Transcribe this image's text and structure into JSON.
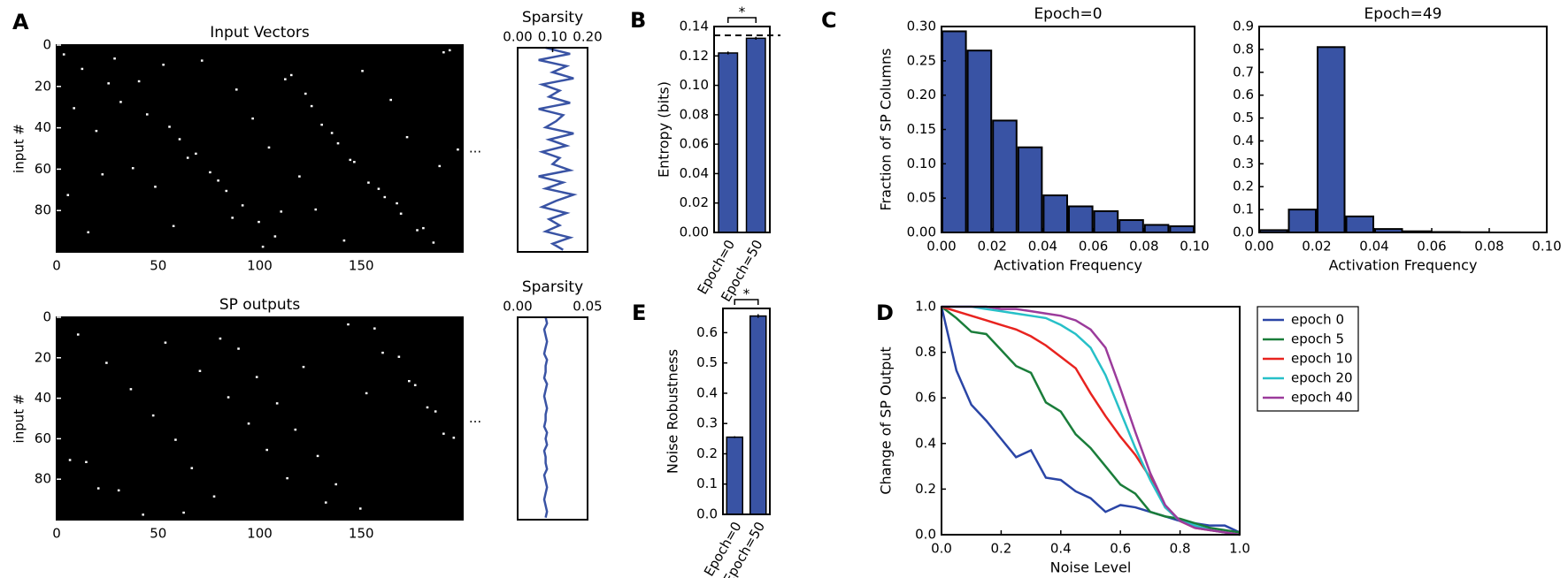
{
  "chart_data": [
    {
      "type": "raster",
      "panel": "A",
      "title": "Input Vectors",
      "y_label": "input #",
      "annotation": "...",
      "xlim": [
        0,
        200
      ],
      "xticks": [
        0,
        50,
        100,
        150
      ],
      "ylim": [
        0,
        100
      ],
      "yticks": [
        0,
        20,
        40,
        60,
        80
      ],
      "y_inverted": true,
      "x": [
        3,
        12,
        25,
        31,
        44,
        52,
        60,
        68,
        75,
        83,
        91,
        99,
        107,
        115,
        122,
        130,
        138,
        146,
        153,
        161,
        169,
        177,
        185,
        193,
        8,
        19,
        37,
        48,
        57,
        71,
        88,
        96,
        104,
        119,
        127,
        141,
        150,
        164,
        172,
        188,
        5,
        15,
        28,
        40,
        55,
        64,
        79,
        86,
        101,
        112,
        125,
        135,
        144,
        158,
        167,
        180,
        190,
        197,
        22,
        110
      ],
      "y": [
        4,
        11,
        18,
        27,
        33,
        9,
        45,
        52,
        61,
        70,
        77,
        85,
        92,
        14,
        23,
        38,
        47,
        56,
        66,
        73,
        81,
        89,
        95,
        2,
        30,
        41,
        59,
        68,
        87,
        7,
        21,
        35,
        49,
        63,
        79,
        94,
        12,
        26,
        44,
        58,
        72,
        90,
        6,
        17,
        39,
        54,
        65,
        83,
        97,
        16,
        29,
        42,
        55,
        69,
        76,
        88,
        3,
        50,
        62,
        80
      ]
    },
    {
      "type": "sparsity",
      "title": "Sparsity",
      "color": "#3953a4",
      "xlim": [
        0,
        0.2
      ],
      "xticks": [
        {
          "value": 0,
          "label": "0.00"
        },
        {
          "value": 0.1,
          "label": "0.10"
        },
        {
          "value": 0.2,
          "label": "0.20"
        }
      ],
      "ylim": [
        0,
        100
      ],
      "y_inverted": true,
      "y": [
        0,
        3,
        6,
        9,
        12,
        15,
        18,
        21,
        24,
        27,
        30,
        33,
        36,
        39,
        42,
        45,
        48,
        51,
        54,
        57,
        60,
        63,
        66,
        69,
        72,
        75,
        78,
        81,
        84,
        87,
        90,
        93,
        96,
        99
      ],
      "values": [
        0.08,
        0.15,
        0.06,
        0.14,
        0.1,
        0.16,
        0.07,
        0.12,
        0.09,
        0.15,
        0.06,
        0.13,
        0.11,
        0.08,
        0.16,
        0.09,
        0.14,
        0.07,
        0.12,
        0.1,
        0.15,
        0.06,
        0.13,
        0.08,
        0.16,
        0.11,
        0.07,
        0.14,
        0.09,
        0.12,
        0.08,
        0.15,
        0.1,
        0.13
      ]
    },
    {
      "type": "raster",
      "title": "SP outputs",
      "y_label": "input #",
      "annotation": "...",
      "xlim": [
        0,
        200
      ],
      "xticks": [
        0,
        50,
        100,
        150
      ],
      "ylim": [
        0,
        100
      ],
      "yticks": [
        0,
        20,
        40,
        60,
        80
      ],
      "y_inverted": true,
      "x": [
        10,
        24,
        36,
        47,
        58,
        66,
        77,
        89,
        98,
        108,
        117,
        128,
        137,
        149,
        156,
        168,
        176,
        186,
        195,
        14,
        30,
        42,
        53,
        70,
        84,
        94,
        103,
        113,
        132,
        143,
        160,
        173,
        182,
        190,
        6,
        20,
        62,
        80,
        121,
        152
      ],
      "y": [
        8,
        22,
        35,
        48,
        60,
        74,
        88,
        15,
        29,
        42,
        55,
        68,
        82,
        94,
        5,
        19,
        33,
        46,
        59,
        71,
        85,
        97,
        12,
        26,
        39,
        52,
        65,
        79,
        91,
        3,
        17,
        31,
        44,
        57,
        70,
        84,
        96,
        10,
        24,
        37
      ]
    },
    {
      "type": "sparsity",
      "title": "Sparsity",
      "color": "#3953a4",
      "xlim": [
        0,
        0.05
      ],
      "xticks": [
        {
          "value": 0,
          "label": "0.00"
        },
        {
          "value": 0.05,
          "label": "0.05"
        }
      ],
      "ylim": [
        0,
        100
      ],
      "y_inverted": true,
      "y": [
        0,
        3,
        6,
        9,
        12,
        15,
        18,
        21,
        24,
        27,
        30,
        33,
        36,
        39,
        42,
        45,
        48,
        51,
        54,
        57,
        60,
        63,
        66,
        69,
        72,
        75,
        78,
        81,
        84,
        87,
        90,
        93,
        96,
        99
      ],
      "values": [
        0.02,
        0.021,
        0.019,
        0.02,
        0.021,
        0.02,
        0.019,
        0.021,
        0.02,
        0.02,
        0.019,
        0.021,
        0.02,
        0.019,
        0.02,
        0.021,
        0.02,
        0.02,
        0.019,
        0.021,
        0.02,
        0.021,
        0.019,
        0.02,
        0.02,
        0.021,
        0.019,
        0.02,
        0.021,
        0.02,
        0.019,
        0.02,
        0.021,
        0.02
      ]
    },
    {
      "type": "bar",
      "panel": "B",
      "y_label": "Entropy (bits)",
      "annotation": "*",
      "color": "#3953a4",
      "categories": [
        "Epoch=0",
        "Epoch=50"
      ],
      "values": [
        0.122,
        0.132
      ],
      "errors": [
        0.001,
        0.001
      ],
      "reference_line": 0.134,
      "ylim": [
        0,
        0.14
      ],
      "yticks": [
        {
          "value": 0,
          "label": "0.00"
        },
        0.02,
        0.04,
        0.06,
        0.08,
        {
          "value": 0.1,
          "label": "0.10"
        },
        0.12,
        0.14
      ]
    },
    {
      "type": "histogram",
      "panel": "C",
      "title": "Epoch=0",
      "x_label": "Activation Frequency",
      "y_label": "Fraction of SP Columns",
      "color": "#3953a4",
      "bins": [
        0,
        0.01,
        0.02,
        0.03,
        0.04,
        0.05,
        0.06,
        0.07,
        0.08,
        0.09,
        0.1
      ],
      "values": [
        0.293,
        0.265,
        0.163,
        0.124,
        0.054,
        0.038,
        0.031,
        0.018,
        0.011,
        0.009
      ],
      "xlim": [
        0,
        0.1
      ],
      "xticks": [
        {
          "value": 0,
          "label": "0.00"
        },
        0.02,
        0.04,
        0.06,
        0.08,
        {
          "value": 0.1,
          "label": "0.10"
        }
      ],
      "ylim": [
        0,
        0.3
      ],
      "yticks": [
        {
          "value": 0,
          "label": "0.00"
        },
        0.05,
        {
          "value": 0.1,
          "label": "0.10"
        },
        0.15,
        {
          "value": 0.2,
          "label": "0.20"
        },
        0.25,
        {
          "value": 0.3,
          "label": "0.30"
        }
      ]
    },
    {
      "type": "histogram",
      "title": "Epoch=49",
      "x_label": "Activation Frequency",
      "color": "#3953a4",
      "bins": [
        0,
        0.01,
        0.02,
        0.03,
        0.04,
        0.05,
        0.06,
        0.07,
        0.08,
        0.09,
        0.1
      ],
      "values": [
        0.01,
        0.1,
        0.81,
        0.07,
        0.015,
        0.005,
        0.002,
        0.001,
        0,
        0
      ],
      "xlim": [
        0,
        0.1
      ],
      "xticks": [
        {
          "value": 0,
          "label": "0.00"
        },
        0.02,
        0.04,
        0.06,
        0.08,
        {
          "value": 0.1,
          "label": "0.10"
        }
      ],
      "ylim": [
        0,
        0.9
      ],
      "yticks": [
        {
          "value": 0,
          "label": "0.0"
        },
        0.1,
        0.2,
        0.3,
        0.4,
        0.5,
        0.6,
        0.7,
        0.8,
        0.9
      ]
    },
    {
      "type": "line",
      "panel": "D",
      "x_label": "Noise Level",
      "y_label": "Change of SP Output",
      "legend": "right-outside",
      "x": [
        0,
        0.05,
        0.1,
        0.15,
        0.2,
        0.25,
        0.3,
        0.35,
        0.4,
        0.45,
        0.5,
        0.55,
        0.6,
        0.65,
        0.7,
        0.75,
        0.8,
        0.85,
        0.9,
        0.95,
        1
      ],
      "series": [
        {
          "name": "epoch 0",
          "color": "#2a45a6",
          "values": [
            1.0,
            0.72,
            0.57,
            0.5,
            0.42,
            0.34,
            0.37,
            0.25,
            0.24,
            0.19,
            0.16,
            0.1,
            0.13,
            0.12,
            0.1,
            0.08,
            0.06,
            0.05,
            0.04,
            0.04,
            0.01
          ]
        },
        {
          "name": "epoch 5",
          "color": "#1a7d3a",
          "values": [
            1.0,
            0.95,
            0.89,
            0.88,
            0.81,
            0.74,
            0.71,
            0.58,
            0.54,
            0.44,
            0.38,
            0.3,
            0.22,
            0.18,
            0.1,
            0.08,
            0.07,
            0.05,
            0.03,
            0.02,
            0.01
          ]
        },
        {
          "name": "epoch 10",
          "color": "#e8231f",
          "values": [
            1.0,
            0.98,
            0.96,
            0.94,
            0.92,
            0.9,
            0.87,
            0.83,
            0.78,
            0.73,
            0.62,
            0.52,
            0.43,
            0.35,
            0.25,
            0.12,
            0.06,
            0.03,
            0.02,
            0.01,
            0.0
          ]
        },
        {
          "name": "epoch 20",
          "color": "#27c0c8",
          "values": [
            1.0,
            1.0,
            1.0,
            0.99,
            0.98,
            0.97,
            0.96,
            0.95,
            0.92,
            0.88,
            0.82,
            0.7,
            0.54,
            0.38,
            0.24,
            0.12,
            0.06,
            0.04,
            0.02,
            0.01,
            0.0
          ]
        },
        {
          "name": "epoch 40",
          "color": "#9b3b9b",
          "values": [
            1.0,
            1.0,
            1.0,
            1.0,
            0.99,
            0.99,
            0.98,
            0.97,
            0.96,
            0.94,
            0.9,
            0.82,
            0.64,
            0.45,
            0.27,
            0.13,
            0.06,
            0.03,
            0.02,
            0.01,
            0.0
          ]
        }
      ],
      "xlim": [
        0,
        1
      ],
      "xticks": [
        {
          "value": 0,
          "label": "0.0"
        },
        0.2,
        0.4,
        0.6,
        0.8,
        {
          "value": 1,
          "label": "1.0"
        }
      ],
      "ylim": [
        0,
        1
      ],
      "yticks": [
        {
          "value": 0,
          "label": "0.0"
        },
        0.2,
        0.4,
        0.6,
        0.8,
        {
          "value": 1,
          "label": "1.0"
        }
      ]
    },
    {
      "type": "bar",
      "panel": "E",
      "y_label": "Noise Robustness",
      "annotation": "*",
      "color": "#3953a4",
      "categories": [
        "Epoch=0",
        "Epoch=50"
      ],
      "values": [
        0.255,
        0.655
      ],
      "errors": [
        0.003,
        0.006
      ],
      "ylim": [
        0,
        0.68
      ],
      "yticks": [
        {
          "value": 0,
          "label": "0.0"
        },
        0.1,
        0.2,
        0.3,
        0.4,
        0.5,
        0.6
      ]
    }
  ]
}
